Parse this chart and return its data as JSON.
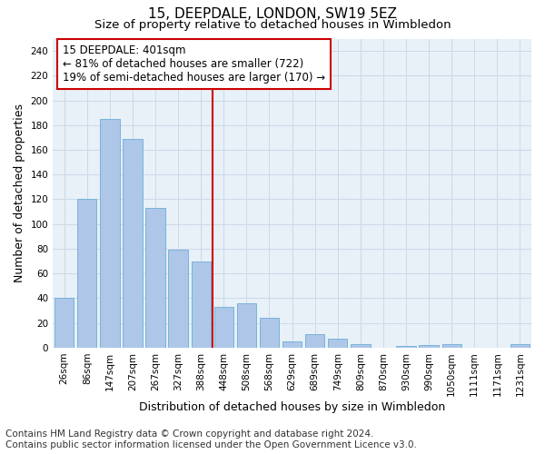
{
  "title": "15, DEEPDALE, LONDON, SW19 5EZ",
  "subtitle": "Size of property relative to detached houses in Wimbledon",
  "xlabel": "Distribution of detached houses by size in Wimbledon",
  "ylabel": "Number of detached properties",
  "categories": [
    "26sqm",
    "86sqm",
    "147sqm",
    "207sqm",
    "267sqm",
    "327sqm",
    "388sqm",
    "448sqm",
    "508sqm",
    "568sqm",
    "629sqm",
    "689sqm",
    "749sqm",
    "809sqm",
    "870sqm",
    "930sqm",
    "990sqm",
    "1050sqm",
    "1111sqm",
    "1171sqm",
    "1231sqm"
  ],
  "values": [
    40,
    120,
    185,
    169,
    113,
    79,
    70,
    33,
    36,
    24,
    5,
    11,
    7,
    3,
    0,
    1,
    2,
    3,
    0,
    0,
    3
  ],
  "bar_color": "#aec6e8",
  "bar_edge_color": "#6aaed6",
  "vline_color": "#cc0000",
  "vline_x": 6.5,
  "annotation_box_text": "15 DEEPDALE: 401sqm\n← 81% of detached houses are smaller (722)\n19% of semi-detached houses are larger (170) →",
  "annotation_box_color": "#cc0000",
  "annotation_box_bg": "#ffffff",
  "footer_line1": "Contains HM Land Registry data © Crown copyright and database right 2024.",
  "footer_line2": "Contains public sector information licensed under the Open Government Licence v3.0.",
  "ylim": [
    0,
    250
  ],
  "yticks": [
    0,
    20,
    40,
    60,
    80,
    100,
    120,
    140,
    160,
    180,
    200,
    220,
    240
  ],
  "grid_color": "#ccd9e8",
  "bg_color": "#e8f0f8",
  "title_fontsize": 11,
  "subtitle_fontsize": 9.5,
  "axis_label_fontsize": 9,
  "tick_fontsize": 7.5,
  "annotation_fontsize": 8.5,
  "footer_fontsize": 7.5
}
